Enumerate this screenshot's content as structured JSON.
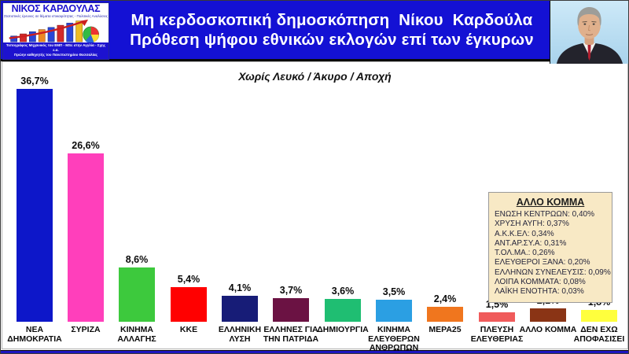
{
  "branding": {
    "logo_name": "ΝΙΚΟΣ ΚΑΡΔΟΥΛΑΣ",
    "logo_tagline": "Στατιστικές έρευνες σε θέματα επικαιρότητας - Πολιτικές Αναλύσεις",
    "logo_footer_line1": "Τοπογράφος Μηχανικός του ΕΜΠ - MSc στην Αγγλία - Σχης ε.α.",
    "logo_footer_line2": "Πρώην καθηγητής του Πανεπιστημίου Θεσσαλίας"
  },
  "header": {
    "title_line1": "Μη κερδοσκοπική δημοσκόπηση  Νίκου  Καρδούλα",
    "title_line2": "Πρόθεση ψήφου εθνικών εκλογών επί των έγκυρων",
    "band_color": "#1411d4"
  },
  "chart_data": {
    "type": "bar",
    "title": "Χωρίς Λευκό / Άκυρο / Αποχή",
    "categories": [
      "ΝΕΑ ΔΗΜΟΚΡΑΤΙΑ",
      "ΣΥΡΙΖΑ",
      "ΚΙΝΗΜΑ ΑΛΛΑΓΗΣ",
      "ΚΚΕ",
      "ΕΛΛΗΝΙΚΗ ΛΥΣΗ",
      "ΕΛΛΗΝΕΣ ΓΙΑ ΤΗΝ ΠΑΤΡΙΔΑ",
      "ΔΗΜΙΟΥΡΓΙΑ",
      "ΚΙΝΗΜΑ ΕΛΕΥΘΕΡΩΝ ΑΝΘΡΩΠΩΝ",
      "ΜΕΡΑ25",
      "ΠΛΕΥΣΗ ΕΛΕΥΘΕΡΙΑΣ",
      "ΑΛΛΟ ΚΟΜΜΑ",
      "ΔΕΝ ΕΧΩ ΑΠΟΦΑΣΙΣΕΙ"
    ],
    "label_lines": [
      [
        "ΝΕΑ",
        "ΔΗΜΟΚΡΑΤΙΑ"
      ],
      [
        "ΣΥΡΙΖΑ"
      ],
      [
        "ΚΙΝΗΜΑ",
        "ΑΛΛΑΓΗΣ"
      ],
      [
        "ΚΚΕ"
      ],
      [
        "ΕΛΛΗΝΙΚΗ",
        "ΛΥΣΗ"
      ],
      [
        "ΕΛΛΗΝΕΣ ΓΙΑ",
        "ΤΗΝ ΠΑΤΡΙΔΑ"
      ],
      [
        "ΔΗΜΙΟΥΡΓΙΑ"
      ],
      [
        "ΚΙΝΗΜΑ",
        "ΕΛΕΥΘΕΡΩΝ",
        "ΑΝΘΡΩΠΩΝ"
      ],
      [
        "ΜΕΡΑ25"
      ],
      [
        "ΠΛΕΥΣΗ",
        "ΕΛΕΥΘΕΡΙΑΣ"
      ],
      [
        "ΑΛΛΟ ΚΟΜΜΑ"
      ],
      [
        "ΔΕΝ ΕΧΩ",
        "ΑΠΟΦΑΣΙΣΕΙ"
      ]
    ],
    "values": [
      36.7,
      26.6,
      8.6,
      5.4,
      4.1,
      3.7,
      3.6,
      3.5,
      2.4,
      1.5,
      2.1,
      1.8
    ],
    "value_labels": [
      "36,7%",
      "26,6%",
      "8,6%",
      "5,4%",
      "4,1%",
      "3,7%",
      "3,6%",
      "3,5%",
      "2,4%",
      "1,5%",
      "2,1%",
      "1,8%"
    ],
    "bar_colors": [
      "#0d17c9",
      "#ff3fbb",
      "#3dc93d",
      "#ff0000",
      "#171c77",
      "#6b1243",
      "#1fbe72",
      "#2b9fe3",
      "#f0761e",
      "#f05b5b",
      "#8a3415",
      "#ffff3d"
    ],
    "ylim": [
      0,
      40
    ],
    "grid": false,
    "value_labels_position": "above-bars",
    "axis_lines": "none"
  },
  "other_party_box": {
    "title": "ΑΛΛΟ ΚΟΜΜΑ",
    "entries": [
      "ΕΝΩΣΗ ΚΕΝΤΡΩΩΝ: 0,40%",
      "ΧΡΥΣΗ ΑΥΓΗ: 0,37%",
      "Α.Κ.Κ.ΕΛ: 0,34%",
      "ΑΝΤ.ΑΡ.ΣΥ.Α: 0,31%",
      "Τ.ΟΛ.ΜΑ.: 0,26%",
      "ΕΛΕΥΘΕΡΟΙ ΞΑΝΑ: 0,20%",
      "ΕΛΛΗΝΩΝ ΣΥΝΕΛΕΥΣΙΣ: 0,09%",
      "ΛΟΙΠΑ ΚΟΜΜΑΤΑ: 0,08%",
      "ΛΑΪΚΗ ΕΝΟΤΗΤΑ: 0,03%"
    ],
    "background": "#f8e9c5"
  }
}
